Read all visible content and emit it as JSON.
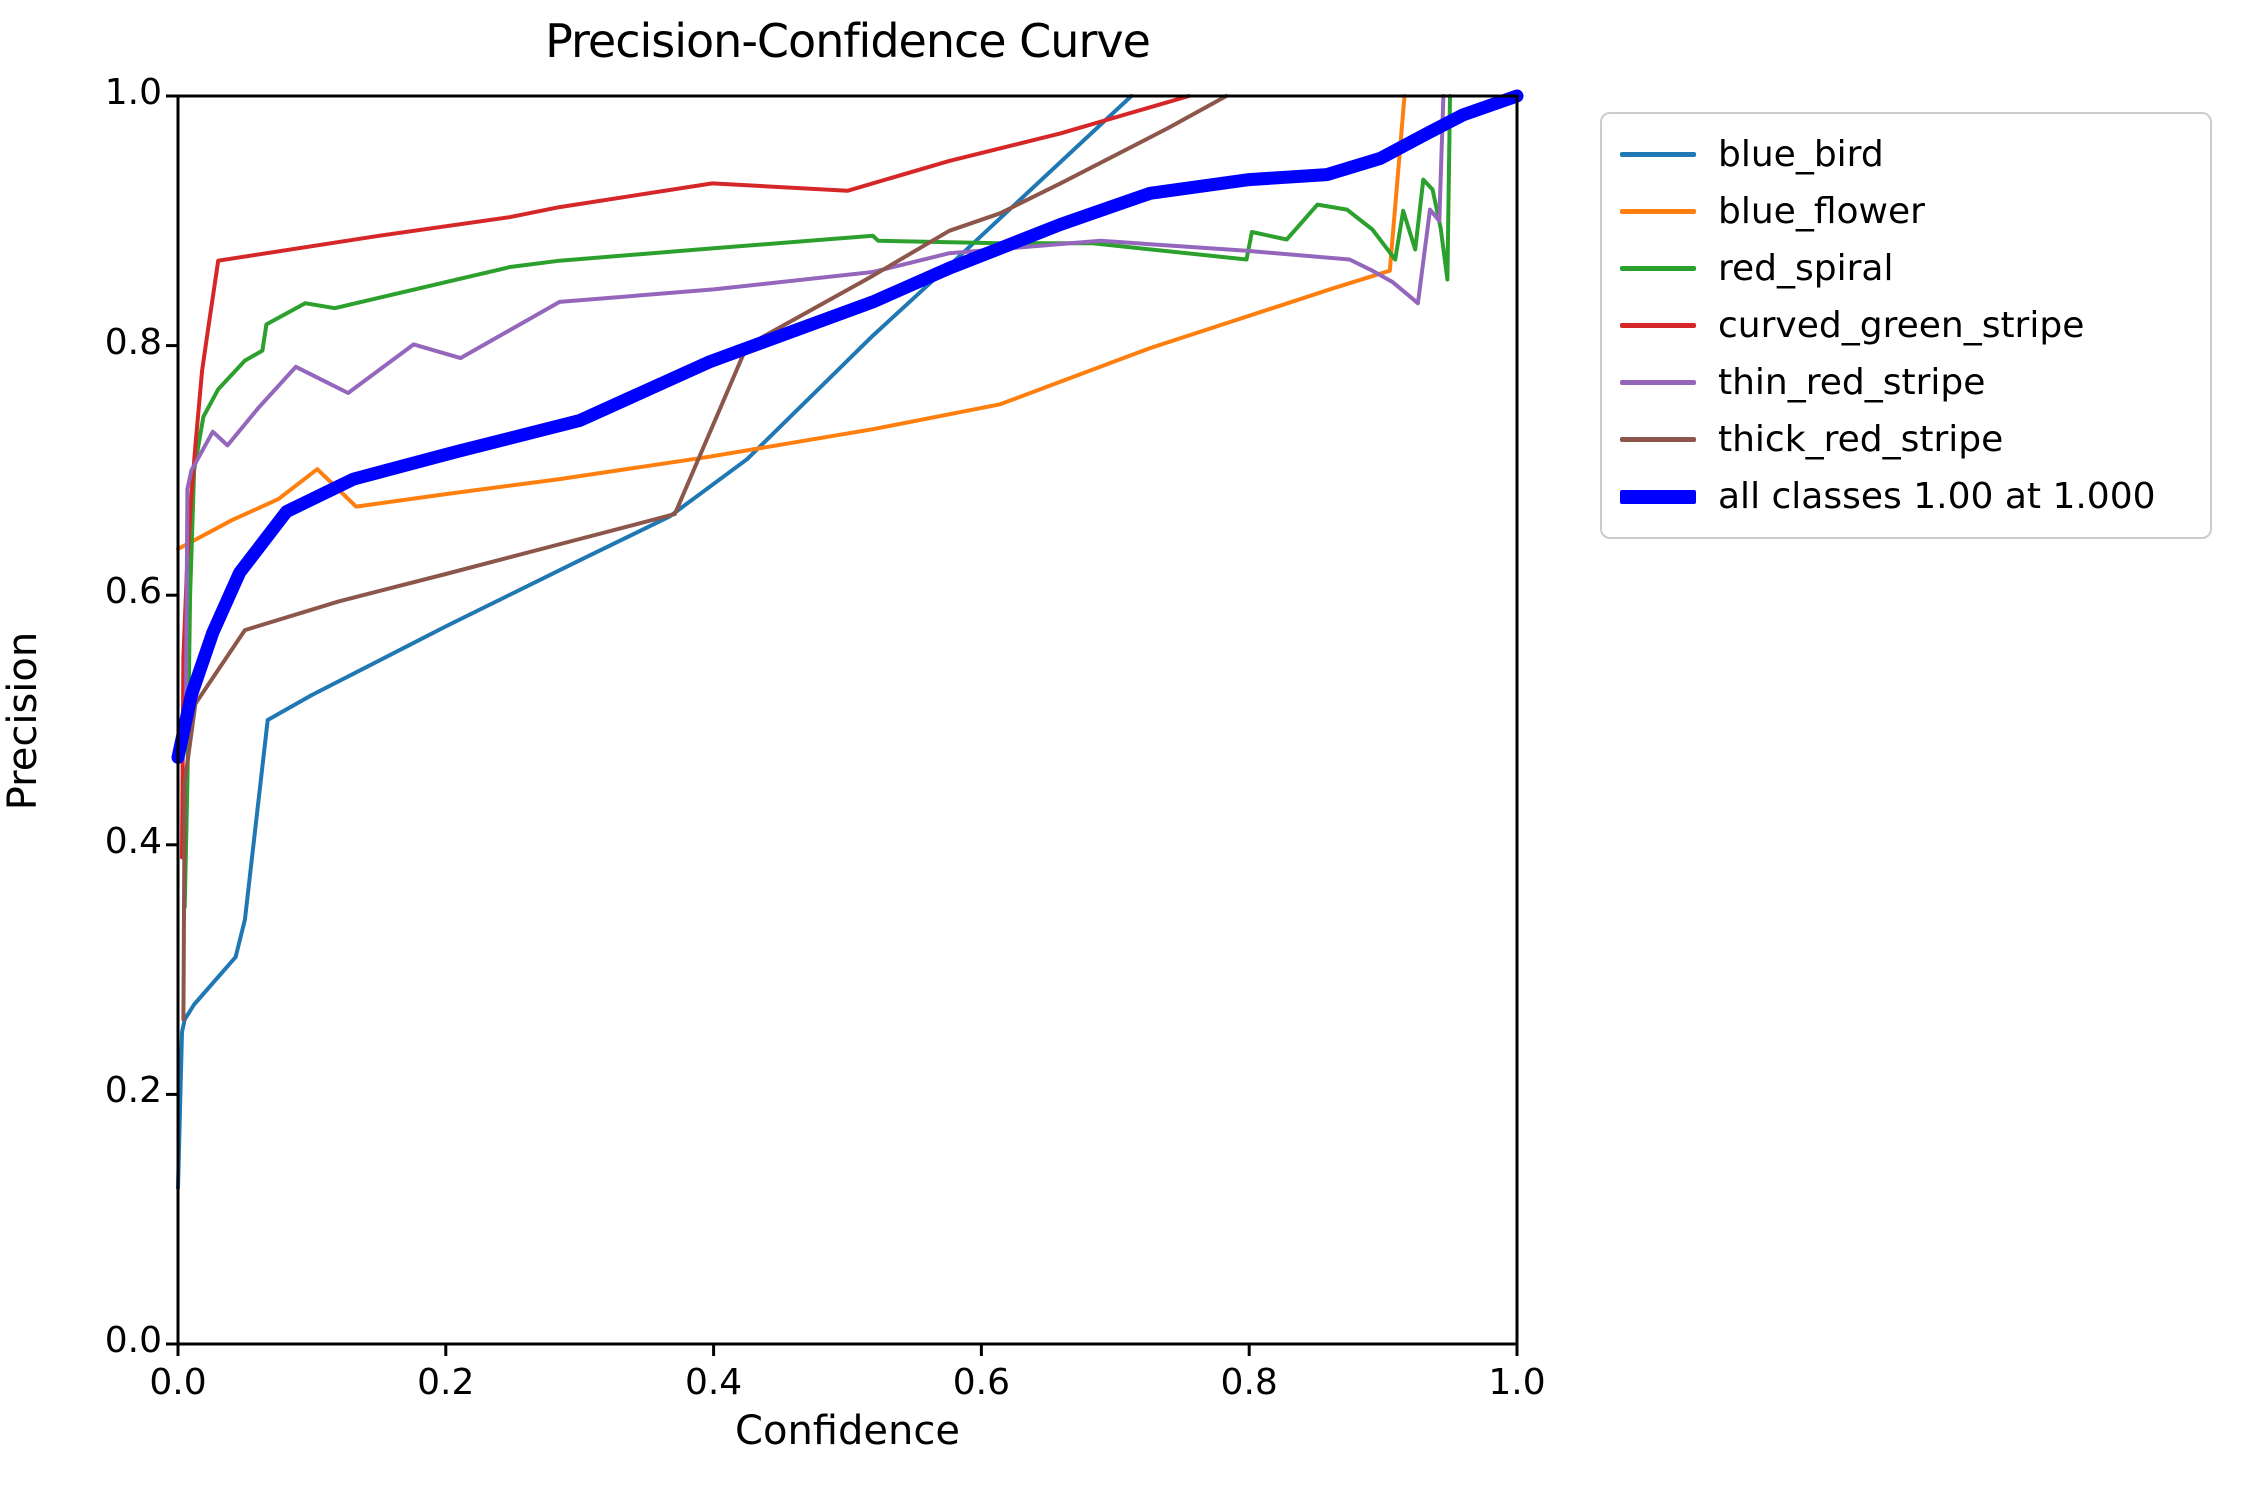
{
  "chart_data": {
    "type": "line",
    "title": "Precision-Confidence Curve",
    "xlabel": "Confidence",
    "ylabel": "Precision",
    "xlim": [
      0.0,
      1.0
    ],
    "ylim": [
      0.0,
      1.0
    ],
    "grid": false,
    "legend_position": "outside-upper-right",
    "x_ticks": {
      "values": [
        0.0,
        0.2,
        0.4,
        0.6,
        0.8,
        1.0
      ],
      "labels": [
        "0.0",
        "0.2",
        "0.4",
        "0.6",
        "0.8",
        "1.0"
      ]
    },
    "y_ticks": {
      "values": [
        0.0,
        0.2,
        0.4,
        0.6,
        0.8,
        1.0
      ],
      "labels": [
        "0.0",
        "0.2",
        "0.4",
        "0.6",
        "0.8",
        "1.0"
      ]
    },
    "series": [
      {
        "name": "blue_bird",
        "color": "#1f77b4",
        "line": "thin",
        "points": [
          [
            0.0,
            0.125
          ],
          [
            0.003,
            0.25
          ],
          [
            0.005,
            0.26
          ],
          [
            0.012,
            0.272
          ],
          [
            0.043,
            0.31
          ],
          [
            0.05,
            0.34
          ],
          [
            0.067,
            0.5
          ],
          [
            0.1,
            0.52
          ],
          [
            0.2,
            0.575
          ],
          [
            0.3,
            0.628
          ],
          [
            0.367,
            0.663
          ],
          [
            0.425,
            0.709
          ],
          [
            0.519,
            0.808
          ],
          [
            0.582,
            0.87
          ],
          [
            0.614,
            0.902
          ],
          [
            0.686,
            0.974
          ],
          [
            0.712,
            1.0
          ]
        ]
      },
      {
        "name": "blue_flower",
        "color": "#ff7f0e",
        "line": "thin",
        "points": [
          [
            0.0,
            0.637
          ],
          [
            0.04,
            0.66
          ],
          [
            0.075,
            0.677
          ],
          [
            0.104,
            0.701
          ],
          [
            0.133,
            0.671
          ],
          [
            0.2,
            0.681
          ],
          [
            0.285,
            0.693
          ],
          [
            0.397,
            0.711
          ],
          [
            0.519,
            0.733
          ],
          [
            0.614,
            0.753
          ],
          [
            0.726,
            0.798
          ],
          [
            0.863,
            0.846
          ],
          [
            0.905,
            0.86
          ],
          [
            0.916,
            1.0
          ]
        ]
      },
      {
        "name": "red_spiral",
        "color": "#2ca02c",
        "line": "thin",
        "points": [
          [
            0.005,
            0.35
          ],
          [
            0.007,
            0.45
          ],
          [
            0.009,
            0.6
          ],
          [
            0.012,
            0.7
          ],
          [
            0.019,
            0.743
          ],
          [
            0.03,
            0.765
          ],
          [
            0.05,
            0.788
          ],
          [
            0.063,
            0.796
          ],
          [
            0.066,
            0.817
          ],
          [
            0.095,
            0.834
          ],
          [
            0.117,
            0.83
          ],
          [
            0.248,
            0.863
          ],
          [
            0.285,
            0.868
          ],
          [
            0.4,
            0.878
          ],
          [
            0.519,
            0.888
          ],
          [
            0.523,
            0.884
          ],
          [
            0.614,
            0.882
          ],
          [
            0.683,
            0.882
          ],
          [
            0.798,
            0.869
          ],
          [
            0.802,
            0.891
          ],
          [
            0.828,
            0.885
          ],
          [
            0.851,
            0.913
          ],
          [
            0.873,
            0.909
          ],
          [
            0.892,
            0.893
          ],
          [
            0.909,
            0.869
          ],
          [
            0.915,
            0.908
          ],
          [
            0.924,
            0.877
          ],
          [
            0.93,
            0.933
          ],
          [
            0.937,
            0.925
          ],
          [
            0.943,
            0.894
          ],
          [
            0.948,
            0.853
          ],
          [
            0.95,
            1.0
          ]
        ]
      },
      {
        "name": "curved_green_stripe",
        "color": "#d62728",
        "line": "thin",
        "points": [
          [
            0.003,
            0.39
          ],
          [
            0.004,
            0.55
          ],
          [
            0.007,
            0.63
          ],
          [
            0.01,
            0.68
          ],
          [
            0.013,
            0.72
          ],
          [
            0.018,
            0.78
          ],
          [
            0.022,
            0.81
          ],
          [
            0.03,
            0.868
          ],
          [
            0.15,
            0.888
          ],
          [
            0.248,
            0.903
          ],
          [
            0.285,
            0.911
          ],
          [
            0.399,
            0.93
          ],
          [
            0.5,
            0.924
          ],
          [
            0.576,
            0.948
          ],
          [
            0.659,
            0.97
          ],
          [
            0.755,
            1.0
          ]
        ]
      },
      {
        "name": "thin_red_stripe",
        "color": "#9467bd",
        "line": "thin",
        "points": [
          [
            0.006,
            0.52
          ],
          [
            0.007,
            0.685
          ],
          [
            0.01,
            0.7
          ],
          [
            0.026,
            0.731
          ],
          [
            0.037,
            0.72
          ],
          [
            0.06,
            0.75
          ],
          [
            0.088,
            0.783
          ],
          [
            0.127,
            0.762
          ],
          [
            0.176,
            0.801
          ],
          [
            0.211,
            0.79
          ],
          [
            0.285,
            0.835
          ],
          [
            0.4,
            0.845
          ],
          [
            0.519,
            0.859
          ],
          [
            0.576,
            0.874
          ],
          [
            0.689,
            0.884
          ],
          [
            0.798,
            0.876
          ],
          [
            0.875,
            0.869
          ],
          [
            0.892,
            0.86
          ],
          [
            0.907,
            0.851
          ],
          [
            0.926,
            0.834
          ],
          [
            0.935,
            0.909
          ],
          [
            0.942,
            0.9
          ],
          [
            0.945,
            1.0
          ]
        ]
      },
      {
        "name": "thick_red_stripe",
        "color": "#8c564b",
        "line": "thin",
        "points": [
          [
            0.004,
            0.26
          ],
          [
            0.005,
            0.45
          ],
          [
            0.013,
            0.513
          ],
          [
            0.05,
            0.572
          ],
          [
            0.12,
            0.595
          ],
          [
            0.2,
            0.617
          ],
          [
            0.3,
            0.645
          ],
          [
            0.371,
            0.665
          ],
          [
            0.425,
            0.8
          ],
          [
            0.519,
            0.856
          ],
          [
            0.576,
            0.892
          ],
          [
            0.614,
            0.906
          ],
          [
            0.659,
            0.93
          ],
          [
            0.739,
            0.974
          ],
          [
            0.783,
            1.0
          ]
        ]
      },
      {
        "name": "all classes 1.00 at 1.000",
        "color": "#0000ff",
        "line": "thick",
        "points": [
          [
            0.0,
            0.47
          ],
          [
            0.01,
            0.52
          ],
          [
            0.026,
            0.57
          ],
          [
            0.046,
            0.618
          ],
          [
            0.081,
            0.667
          ],
          [
            0.131,
            0.693
          ],
          [
            0.208,
            0.715
          ],
          [
            0.3,
            0.74
          ],
          [
            0.397,
            0.787
          ],
          [
            0.519,
            0.835
          ],
          [
            0.576,
            0.862
          ],
          [
            0.614,
            0.878
          ],
          [
            0.659,
            0.897
          ],
          [
            0.726,
            0.922
          ],
          [
            0.8,
            0.933
          ],
          [
            0.858,
            0.937
          ],
          [
            0.898,
            0.95
          ],
          [
            0.933,
            0.97
          ],
          [
            0.96,
            0.985
          ],
          [
            1.0,
            1.0
          ]
        ]
      }
    ]
  },
  "colors": {
    "background": "#ffffff",
    "axis": "#000000",
    "text": "#000000",
    "legend_border": "#cccccc"
  }
}
